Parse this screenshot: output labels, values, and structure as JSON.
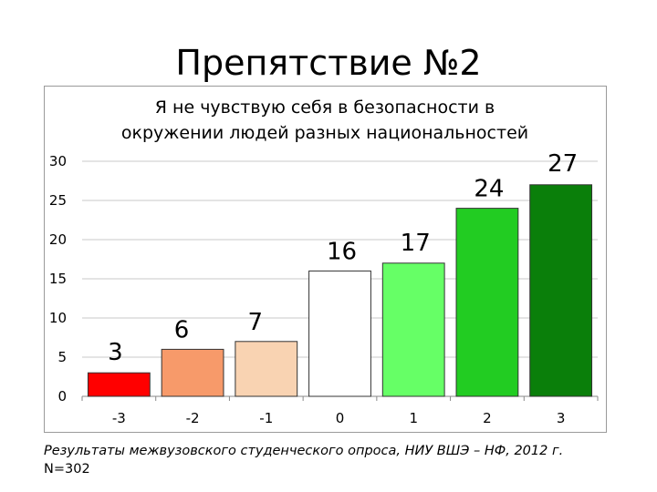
{
  "slide": {
    "title": "Препятствие №2"
  },
  "chart_data": {
    "type": "bar",
    "title_lines": [
      "Я не чувствую себя в безопасности в",
      "окружении людей разных национальностей"
    ],
    "categories": [
      "-3",
      "-2",
      "-1",
      "0",
      "1",
      "2",
      "3"
    ],
    "values": [
      3,
      6,
      7,
      16,
      17,
      24,
      27
    ],
    "data_labels": [
      "3",
      "6",
      "7",
      "16",
      "17",
      "24",
      "27"
    ],
    "bar_colors": [
      "#ff0000",
      "#f79a6a",
      "#f9d3b2",
      "#ffffff",
      "#66ff66",
      "#22cc22",
      "#0a7f0a"
    ],
    "ylim": [
      0,
      30
    ],
    "yticks": [
      "0",
      "5",
      "10",
      "15",
      "20",
      "25",
      "30"
    ],
    "ytick_values": [
      0,
      5,
      10,
      15,
      20,
      25,
      30
    ],
    "grid": true,
    "legend": "none",
    "xlabel": "",
    "ylabel": ""
  },
  "footnote": {
    "source": "Результаты межвузовского студенческого опроса, НИУ ВШЭ – НФ, 2012 г.",
    "sample": "N=302"
  }
}
